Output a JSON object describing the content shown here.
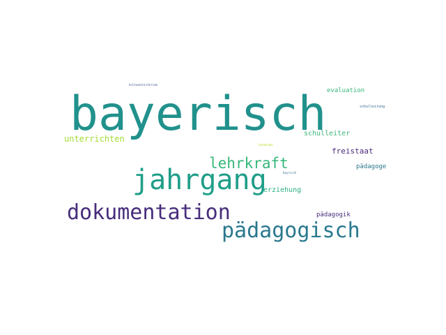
{
  "words": {
    "bayerisch": {
      "text": "bayerisch",
      "color": "#21918c"
    },
    "jahrgang": {
      "text": "jahrgang",
      "color": "#1f9e89"
    },
    "dokumentation": {
      "text": "dokumentation",
      "color": "#472d7b"
    },
    "paedagogisch": {
      "text": "pädagogisch",
      "color": "#2a788e"
    },
    "lehrkraft": {
      "text": "lehrkraft",
      "color": "#35b779"
    },
    "unterrichten": {
      "text": "unterrichten",
      "color": "#a5db36"
    },
    "schulleiter": {
      "text": "schulleiter",
      "color": "#3eb67a"
    },
    "freistaat": {
      "text": "freistaat",
      "color": "#482878"
    },
    "erziehung": {
      "text": "erziehung",
      "color": "#2ab07f"
    },
    "evaluation": {
      "text": "evaluation",
      "color": "#35b779"
    },
    "paedagoge": {
      "text": "pädagoge",
      "color": "#2a788e"
    },
    "paedagogik": {
      "text": "pädagogik",
      "color": "#472d7b"
    },
    "schulleitung": {
      "text": "schulleitung",
      "color": "#31688e"
    },
    "kultusministerium": {
      "text": "kultusministerium",
      "color": "#3b528b"
    },
    "landesamt": {
      "text": "landesamt",
      "color": "#b5de2b"
    },
    "bayrisch": {
      "text": "bayrisch",
      "color": "#31688e"
    }
  }
}
